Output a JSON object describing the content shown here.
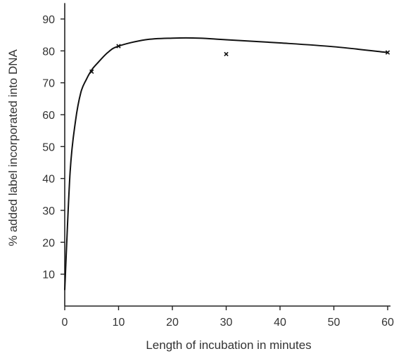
{
  "chart_data": {
    "type": "scatter",
    "title": "",
    "xlabel": "Length of incubation in minutes",
    "ylabel": "% added label incorporated into DNA",
    "xlim": [
      0,
      60
    ],
    "ylim": [
      0,
      95
    ],
    "x_ticks": [
      "0",
      "10",
      "20",
      "30",
      "40",
      "50",
      "60"
    ],
    "y_ticks": [
      "10",
      "20",
      "30",
      "40",
      "50",
      "60",
      "70",
      "80",
      "90"
    ],
    "grid": false,
    "legend": "none",
    "series": [
      {
        "kind": "points",
        "marker": "x",
        "x": [
          5,
          10,
          30,
          60
        ],
        "y": [
          73.5,
          81.5,
          79,
          79.5
        ]
      },
      {
        "kind": "fitted-curve",
        "x": [
          0,
          1,
          2,
          3,
          4,
          5,
          6,
          8,
          10,
          15,
          20,
          25,
          30,
          40,
          50,
          60
        ],
        "y": [
          5,
          42,
          58,
          67,
          71,
          74,
          76,
          79.5,
          81.5,
          83.5,
          84,
          84,
          83.5,
          82.5,
          81.3,
          79.5
        ]
      }
    ]
  }
}
